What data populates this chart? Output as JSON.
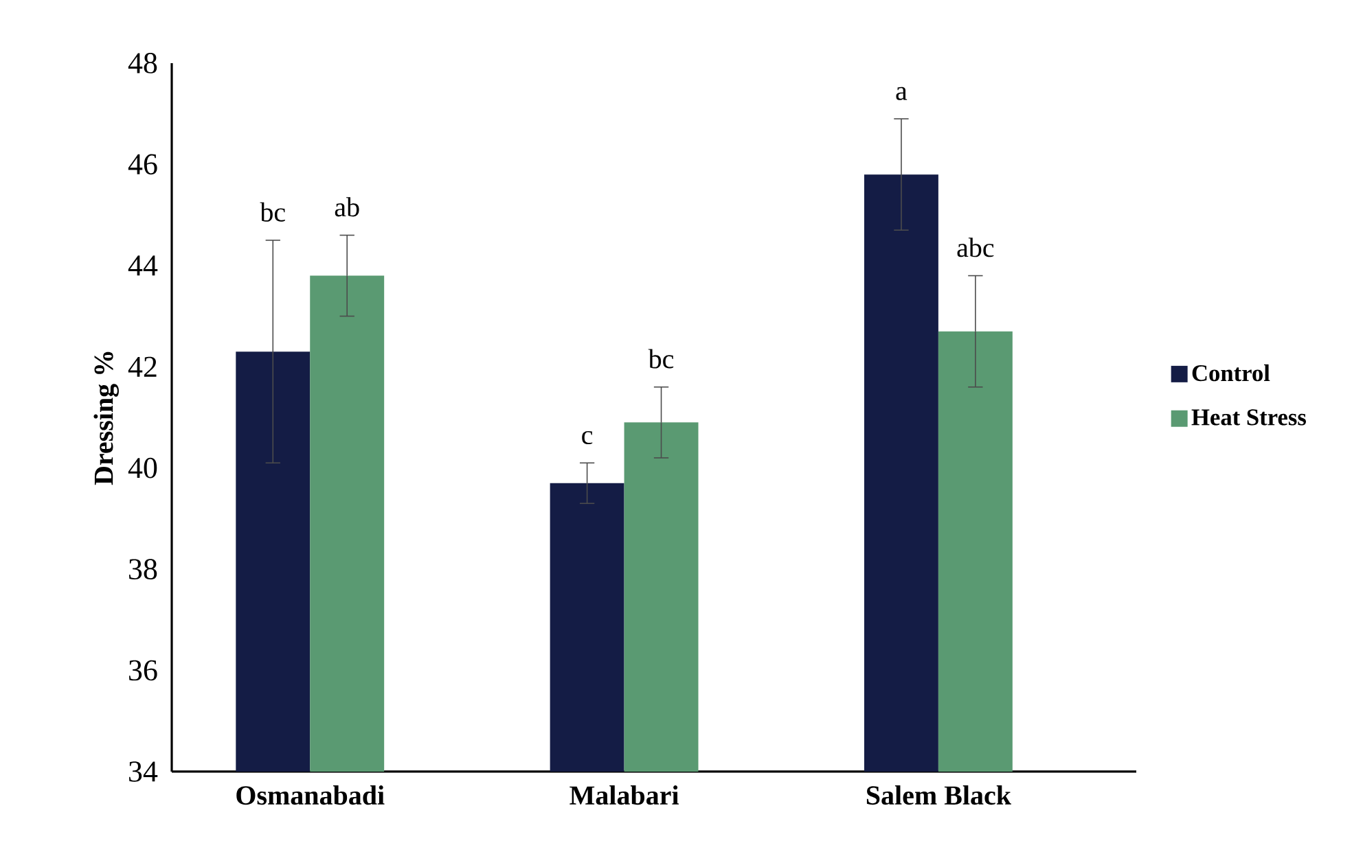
{
  "chart_data": {
    "type": "bar",
    "ylabel": "Dressing %",
    "categories": [
      "Osmanabadi",
      "Malabari",
      "Salem Black"
    ],
    "ylim": [
      34,
      48
    ],
    "yticks": [
      34,
      36,
      38,
      40,
      42,
      44,
      46,
      48
    ],
    "legend": "right",
    "series": [
      {
        "name": "Control",
        "color": "#141c45",
        "values": [
          42.3,
          39.7,
          45.8
        ],
        "errors": [
          2.2,
          0.4,
          1.1
        ]
      },
      {
        "name": "Heat Stress",
        "color": "#5a9a72",
        "values": [
          43.8,
          40.9,
          42.7
        ],
        "errors": [
          0.8,
          0.7,
          1.1
        ]
      }
    ],
    "annotations": [
      "bc",
      "ab",
      "c",
      "bc",
      "a",
      "abc"
    ]
  }
}
